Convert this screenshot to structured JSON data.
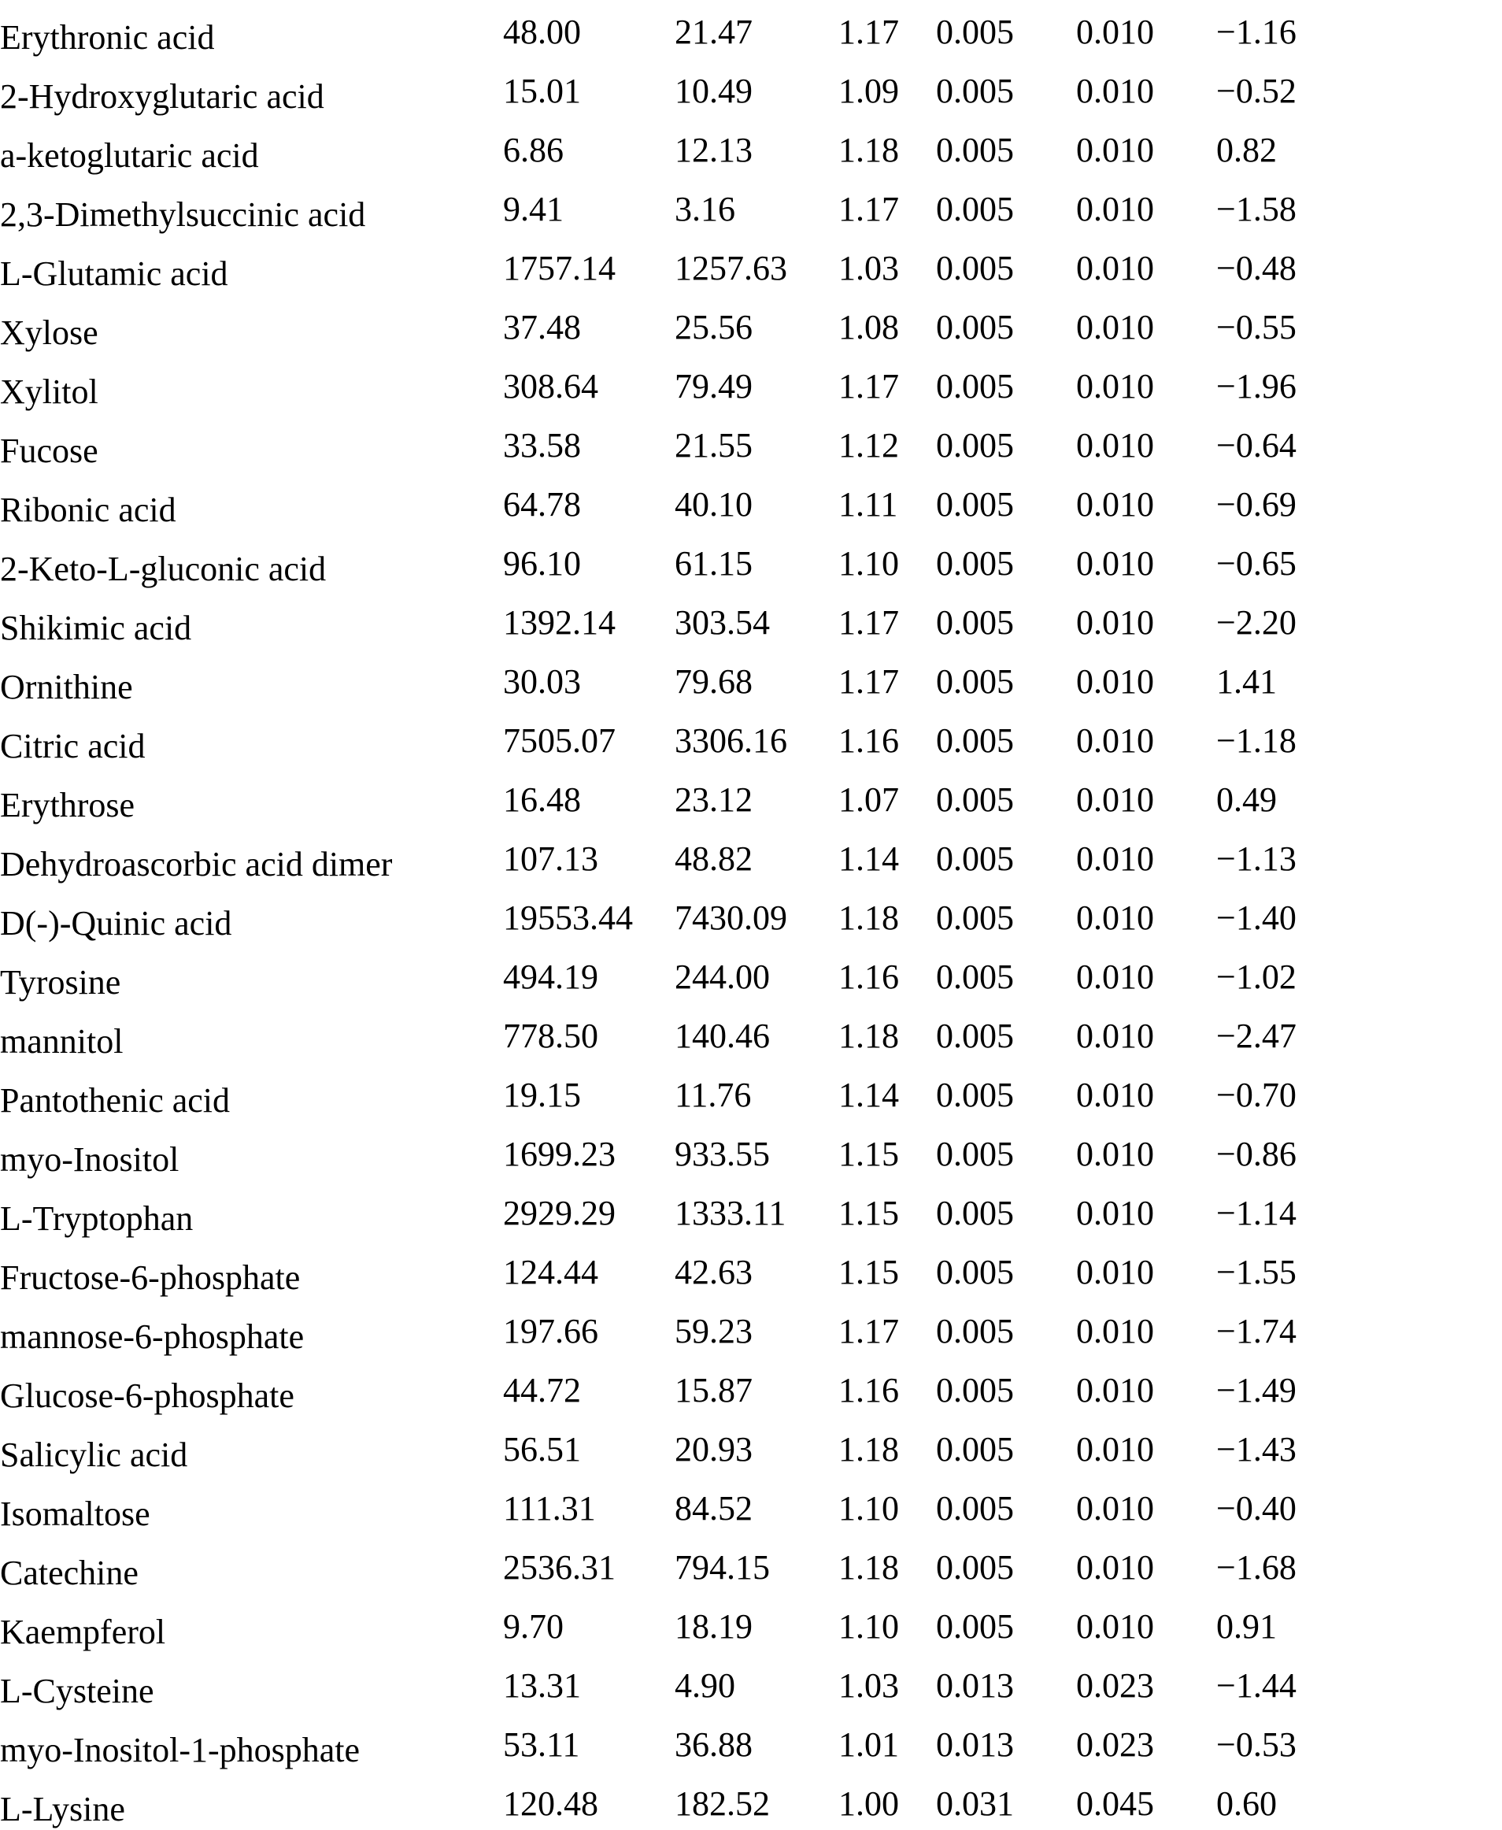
{
  "page": {
    "background": "#ffffff",
    "text_color": "#000000"
  },
  "table": {
    "rows": [
      {
        "name": "Erythronic acid",
        "values": [
          "48.00",
          "21.47",
          "1.17",
          "0.005",
          "0.010",
          "−1.16"
        ]
      },
      {
        "name": "2-Hydroxyglutaric acid",
        "values": [
          "15.01",
          "10.49",
          "1.09",
          "0.005",
          "0.010",
          "−0.52"
        ]
      },
      {
        "name": "a-ketoglutaric acid",
        "values": [
          "6.86",
          "12.13",
          "1.18",
          "0.005",
          "0.010",
          "0.82"
        ]
      },
      {
        "name": "2,3-Dimethylsuccinic acid",
        "values": [
          "9.41",
          "3.16",
          "1.17",
          "0.005",
          "0.010",
          "−1.58"
        ]
      },
      {
        "name": "L-Glutamic acid",
        "values": [
          "1757.14",
          "1257.63",
          "1.03",
          "0.005",
          "0.010",
          "−0.48"
        ]
      },
      {
        "name": "Xylose",
        "values": [
          "37.48",
          "25.56",
          "1.08",
          "0.005",
          "0.010",
          "−0.55"
        ]
      },
      {
        "name": "Xylitol",
        "values": [
          "308.64",
          "79.49",
          "1.17",
          "0.005",
          "0.010",
          "−1.96"
        ]
      },
      {
        "name": "Fucose",
        "values": [
          "33.58",
          "21.55",
          "1.12",
          "0.005",
          "0.010",
          "−0.64"
        ]
      },
      {
        "name": "Ribonic acid",
        "values": [
          "64.78",
          "40.10",
          "1.11",
          "0.005",
          "0.010",
          "−0.69"
        ]
      },
      {
        "name": "2-Keto-L-gluconic acid",
        "values": [
          "96.10",
          "61.15",
          "1.10",
          "0.005",
          "0.010",
          "−0.65"
        ]
      },
      {
        "name": "Shikimic acid",
        "values": [
          "1392.14",
          "303.54",
          "1.17",
          "0.005",
          "0.010",
          "−2.20"
        ]
      },
      {
        "name": "Ornithine",
        "values": [
          "30.03",
          "79.68",
          "1.17",
          "0.005",
          "0.010",
          "1.41"
        ]
      },
      {
        "name": "Citric acid",
        "values": [
          "7505.07",
          "3306.16",
          "1.16",
          "0.005",
          "0.010",
          "−1.18"
        ]
      },
      {
        "name": "Erythrose",
        "values": [
          "16.48",
          "23.12",
          "1.07",
          "0.005",
          "0.010",
          "0.49"
        ]
      },
      {
        "name": "Dehydroascorbic acid dimer",
        "values": [
          "107.13",
          "48.82",
          "1.14",
          "0.005",
          "0.010",
          "−1.13"
        ]
      },
      {
        "name": "D(-)-Quinic acid",
        "values": [
          "19553.44",
          "7430.09",
          "1.18",
          "0.005",
          "0.010",
          "−1.40"
        ]
      },
      {
        "name": "Tyrosine",
        "values": [
          "494.19",
          "244.00",
          "1.16",
          "0.005",
          "0.010",
          "−1.02"
        ]
      },
      {
        "name": "mannitol",
        "values": [
          "778.50",
          "140.46",
          "1.18",
          "0.005",
          "0.010",
          "−2.47"
        ]
      },
      {
        "name": "Pantothenic acid",
        "values": [
          "19.15",
          "11.76",
          "1.14",
          "0.005",
          "0.010",
          "−0.70"
        ]
      },
      {
        "name": "myo-Inositol",
        "values": [
          "1699.23",
          "933.55",
          "1.15",
          "0.005",
          "0.010",
          "−0.86"
        ]
      },
      {
        "name": "L-Tryptophan",
        "values": [
          "2929.29",
          "1333.11",
          "1.15",
          "0.005",
          "0.010",
          "−1.14"
        ]
      },
      {
        "name": "Fructose-6-phosphate",
        "values": [
          "124.44",
          "42.63",
          "1.15",
          "0.005",
          "0.010",
          "−1.55"
        ]
      },
      {
        "name": "mannose-6-phosphate",
        "values": [
          "197.66",
          "59.23",
          "1.17",
          "0.005",
          "0.010",
          "−1.74"
        ]
      },
      {
        "name": "Glucose-6-phosphate",
        "values": [
          "44.72",
          "15.87",
          "1.16",
          "0.005",
          "0.010",
          "−1.49"
        ]
      },
      {
        "name": "Salicylic acid",
        "values": [
          "56.51",
          "20.93",
          "1.18",
          "0.005",
          "0.010",
          "−1.43"
        ]
      },
      {
        "name": "Isomaltose",
        "values": [
          "111.31",
          "84.52",
          "1.10",
          "0.005",
          "0.010",
          "−0.40"
        ]
      },
      {
        "name": "Catechine",
        "values": [
          "2536.31",
          "794.15",
          "1.18",
          "0.005",
          "0.010",
          "−1.68"
        ]
      },
      {
        "name": "Kaempferol",
        "values": [
          "9.70",
          "18.19",
          "1.10",
          "0.005",
          "0.010",
          "0.91"
        ]
      },
      {
        "name": "L-Cysteine",
        "values": [
          "13.31",
          "4.90",
          "1.03",
          "0.013",
          "0.023",
          "−1.44"
        ]
      },
      {
        "name": "myo-Inositol-1-phosphate",
        "values": [
          "53.11",
          "36.88",
          "1.01",
          "0.013",
          "0.023",
          "−0.53"
        ]
      },
      {
        "name": "L-Lysine",
        "values": [
          "120.48",
          "182.52",
          "1.00",
          "0.031",
          "0.045",
          "0.60"
        ]
      }
    ]
  }
}
